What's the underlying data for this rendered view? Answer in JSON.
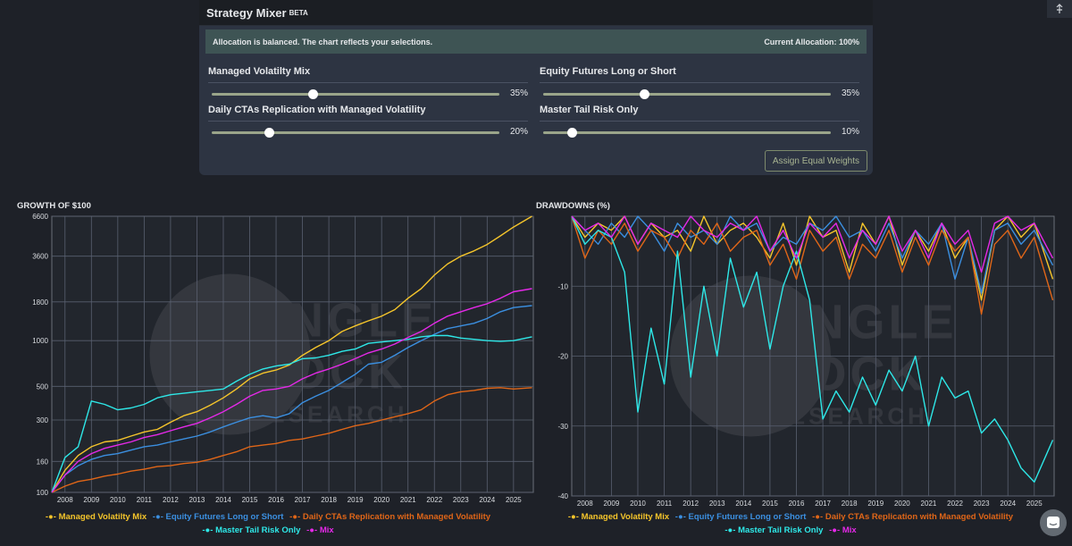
{
  "panel": {
    "title": "Strategy Mixer",
    "beta": "BETA",
    "status_text": "Allocation is balanced. The chart reflects your selections.",
    "current_allocation": "Current Allocation: 100%",
    "equal_button": "Assign Equal Weights",
    "sliders": [
      {
        "label": "Managed Volatilty Mix",
        "value": 35,
        "display": "35%"
      },
      {
        "label": "Equity Futures Long or Short",
        "value": 35,
        "display": "35%"
      },
      {
        "label": "Daily CTAs Replication with Managed Volatility",
        "value": 20,
        "display": "20%"
      },
      {
        "label": "Master Tail Risk Only",
        "value": 10,
        "display": "10%"
      }
    ]
  },
  "icons": {
    "corner": "collapse-icon",
    "chat": "chat-icon",
    "watermark": "jungle-rock-palm-logo-icon"
  },
  "watermark_text": [
    "JUNGLE",
    "ROCK",
    "RESEARCH"
  ],
  "colors": {
    "Managed Volatilty Mix": "#f5c52b",
    "Equity Futures Long or Short": "#3b8fe0",
    "Daily CTAs Replication with Managed Volatility": "#e06618",
    "Master Tail Risk Only": "#2ee8e8",
    "Mix": "#e529e8"
  },
  "chart_data": [
    {
      "type": "line",
      "title": "GROWTH OF $100",
      "yscale": "log",
      "ylim": [
        100,
        6600
      ],
      "yticks": [
        100,
        160,
        300,
        500,
        1000,
        1800,
        3600,
        6600
      ],
      "xlim": [
        2007.5,
        2025.75
      ],
      "xticks": [
        2008,
        2009,
        2010,
        2011,
        2012,
        2013,
        2014,
        2015,
        2016,
        2017,
        2018,
        2019,
        2020,
        2021,
        2022,
        2023,
        2024,
        2025
      ],
      "x": [
        2007.5,
        2008,
        2008.5,
        2009,
        2009.5,
        2010,
        2010.5,
        2011,
        2011.5,
        2012,
        2012.5,
        2013,
        2013.5,
        2014,
        2014.5,
        2015,
        2015.5,
        2016,
        2016.5,
        2017,
        2017.5,
        2018,
        2018.5,
        2019,
        2019.5,
        2020,
        2020.5,
        2021,
        2021.5,
        2022,
        2022.5,
        2023,
        2023.5,
        2024,
        2024.5,
        2025,
        2025.7
      ],
      "series": [
        {
          "name": "Managed Volatilty Mix",
          "values": [
            100,
            140,
            175,
            200,
            215,
            220,
            235,
            250,
            260,
            290,
            320,
            340,
            375,
            420,
            480,
            560,
            610,
            640,
            690,
            800,
            900,
            1000,
            1150,
            1250,
            1350,
            1450,
            1600,
            1900,
            2200,
            2700,
            3200,
            3600,
            3900,
            4300,
            4900,
            5600,
            6600
          ]
        },
        {
          "name": "Equity Futures Long or Short",
          "values": [
            100,
            130,
            150,
            165,
            175,
            180,
            190,
            200,
            205,
            215,
            225,
            235,
            250,
            270,
            290,
            310,
            320,
            310,
            330,
            390,
            430,
            470,
            530,
            600,
            700,
            720,
            800,
            900,
            1000,
            1100,
            1200,
            1250,
            1300,
            1400,
            1550,
            1650,
            1700
          ]
        },
        {
          "name": "Daily CTAs Replication with Managed Volatility",
          "values": [
            100,
            110,
            118,
            122,
            128,
            132,
            138,
            142,
            148,
            150,
            155,
            158,
            165,
            175,
            185,
            200,
            205,
            210,
            220,
            225,
            235,
            245,
            260,
            275,
            285,
            300,
            315,
            330,
            350,
            400,
            440,
            460,
            470,
            485,
            490,
            480,
            490
          ]
        },
        {
          "name": "Master Tail Risk Only",
          "values": [
            100,
            170,
            200,
            400,
            380,
            350,
            360,
            380,
            420,
            440,
            450,
            460,
            470,
            480,
            540,
            600,
            650,
            680,
            700,
            760,
            770,
            800,
            850,
            880,
            960,
            980,
            1000,
            1020,
            1060,
            1080,
            1080,
            1040,
            1020,
            1000,
            990,
            1000,
            1060
          ]
        },
        {
          "name": "Mix",
          "values": [
            100,
            130,
            160,
            180,
            195,
            205,
            215,
            230,
            240,
            255,
            270,
            285,
            310,
            340,
            380,
            430,
            470,
            480,
            500,
            560,
            610,
            650,
            700,
            760,
            830,
            880,
            950,
            1050,
            1150,
            1300,
            1450,
            1550,
            1650,
            1750,
            1900,
            2100,
            2200
          ]
        }
      ],
      "legend": [
        "Managed Volatilty Mix",
        "Equity Futures Long or Short",
        "Daily CTAs Replication with Managed Volatility",
        "Master Tail Risk Only",
        "Mix"
      ]
    },
    {
      "type": "line",
      "title": "DRAWDOWNS (%)",
      "ylim": [
        -40,
        0
      ],
      "yticks": [
        -10,
        -20,
        -30,
        -40
      ],
      "xlim": [
        2007.5,
        2025.75
      ],
      "xticks": [
        2008,
        2009,
        2010,
        2011,
        2012,
        2013,
        2014,
        2015,
        2016,
        2017,
        2018,
        2019,
        2020,
        2021,
        2022,
        2023,
        2024,
        2025
      ],
      "x": [
        2007.5,
        2008,
        2008.5,
        2009,
        2009.5,
        2010,
        2010.5,
        2011,
        2011.5,
        2012,
        2012.5,
        2013,
        2013.5,
        2014,
        2014.5,
        2015,
        2015.5,
        2016,
        2016.5,
        2017,
        2017.5,
        2018,
        2018.5,
        2019,
        2019.5,
        2020,
        2020.5,
        2021,
        2021.5,
        2022,
        2022.5,
        2023,
        2023.5,
        2024,
        2024.5,
        2025,
        2025.7
      ],
      "series": [
        {
          "name": "Managed Volatilty Mix",
          "values": [
            0,
            -3,
            -1,
            -2,
            0,
            -4,
            -1,
            -3,
            -2,
            -5,
            0,
            -4,
            -2,
            -1,
            -3,
            -6,
            -1,
            -7,
            0,
            -3,
            -2,
            -8,
            -1,
            -4,
            0,
            -7,
            -2,
            -5,
            -1,
            -6,
            -3,
            -12,
            -2,
            0,
            -3,
            -1,
            -9
          ]
        },
        {
          "name": "Equity Futures Long or Short",
          "values": [
            0,
            -2,
            -4,
            -1,
            -3,
            0,
            -2,
            -5,
            -1,
            -3,
            -2,
            -4,
            0,
            -2,
            -1,
            -5,
            -3,
            -4,
            -1,
            -2,
            0,
            -3,
            -2,
            -5,
            -1,
            -6,
            -2,
            -4,
            -1,
            -9,
            -3,
            -11,
            -2,
            -1,
            -4,
            -2,
            -7
          ]
        },
        {
          "name": "Daily CTAs Replication with Managed Volatility",
          "values": [
            0,
            -6,
            -2,
            -4,
            -1,
            -5,
            -2,
            -3,
            -6,
            -2,
            -4,
            -1,
            -5,
            -3,
            -2,
            -7,
            -4,
            -9,
            -2,
            -5,
            -3,
            -9,
            -4,
            -6,
            -2,
            -8,
            -3,
            -7,
            -2,
            -5,
            -3,
            -14,
            -4,
            -2,
            -6,
            -3,
            -12
          ]
        },
        {
          "name": "Master Tail Risk Only",
          "values": [
            0,
            -4,
            -2,
            -3,
            -8,
            -28,
            -16,
            -24,
            -5,
            -23,
            -10,
            -20,
            -6,
            -13,
            -8,
            -19,
            -10,
            -5,
            -12,
            -29,
            -25,
            -28,
            -23,
            -27,
            -22,
            -25,
            -20,
            -30,
            -23,
            -26,
            -25,
            -31,
            -29,
            -32,
            -36,
            -38,
            -32
          ]
        },
        {
          "name": "Mix",
          "values": [
            0,
            -2,
            -1,
            -3,
            0,
            -4,
            -1,
            -2,
            -3,
            0,
            -2,
            -3,
            -1,
            -2,
            0,
            -5,
            -2,
            -6,
            -1,
            -3,
            -1,
            -6,
            -2,
            -4,
            0,
            -5,
            -2,
            -6,
            -1,
            -4,
            -2,
            -8,
            -1,
            0,
            -2,
            -1,
            -6
          ]
        }
      ],
      "legend": [
        "Managed Volatilty Mix",
        "Equity Futures Long or Short",
        "Daily CTAs Replication with Managed Volatility",
        "Master Tail Risk Only",
        "Mix"
      ]
    }
  ]
}
